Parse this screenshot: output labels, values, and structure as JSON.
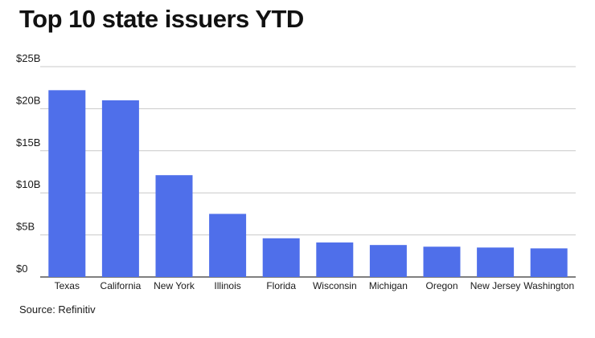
{
  "title": "Top 10 state issuers YTD",
  "source": "Source: Refinitiv",
  "colors": {
    "bar": "#4f6fea",
    "grid": "#c8c8c8",
    "axis": "#333333",
    "text": "#1a1a1a"
  },
  "chart_data": {
    "type": "bar",
    "title": "Top 10 state issuers YTD",
    "categories": [
      "Texas",
      "California",
      "New York",
      "Illinois",
      "Florida",
      "Wisconsin",
      "Michigan",
      "Oregon",
      "New Jersey",
      "Washington"
    ],
    "values": [
      22.2,
      21.0,
      12.1,
      7.5,
      4.6,
      4.1,
      3.8,
      3.6,
      3.5,
      3.4
    ],
    "ylim": [
      0,
      25
    ],
    "yticks": [
      0,
      5,
      10,
      15,
      20,
      25
    ],
    "ytick_labels": [
      "$0",
      "$5B",
      "$10B",
      "$15B",
      "$20B",
      "$25B"
    ],
    "xlabel": "",
    "ylabel": "",
    "grid": true,
    "legend": "none"
  }
}
